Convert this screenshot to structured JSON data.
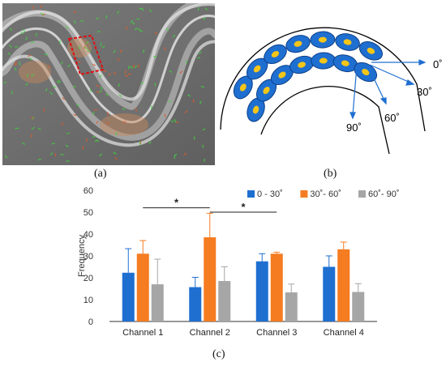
{
  "panels": {
    "a": {
      "label": "(a)"
    },
    "b": {
      "label": "(b)",
      "angle_labels": [
        "0˚",
        "30˚",
        "60˚",
        "90˚"
      ]
    },
    "c": {
      "label": "(c)"
    }
  },
  "chart_data": {
    "type": "bar",
    "title": "",
    "xlabel": "",
    "ylabel": "Frequency",
    "ylim": [
      0,
      60
    ],
    "yticks": [
      0,
      10,
      20,
      30,
      40,
      50,
      60
    ],
    "grid": false,
    "legend_position": "top-right",
    "categories": [
      "Channel 1",
      "Channel 2",
      "Channel 3",
      "Channel 4"
    ],
    "series": [
      {
        "name": "0 - 30˚",
        "color": "#1f6fd1",
        "values": [
          22.3,
          15.7,
          27.5,
          25.0
        ],
        "errors": [
          11.0,
          4.5,
          3.5,
          5.0
        ]
      },
      {
        "name": "30˚- 60˚",
        "color": "#f57c20",
        "values": [
          31.0,
          38.5,
          31.0,
          33.0
        ],
        "errors": [
          6.0,
          11.0,
          0.7,
          3.3
        ]
      },
      {
        "name": "60˚- 90˚",
        "color": "#a6a6a6",
        "values": [
          17.0,
          18.5,
          13.3,
          13.5
        ],
        "errors": [
          11.5,
          6.5,
          3.8,
          3.8
        ]
      }
    ],
    "annotations": [
      {
        "text": "*",
        "from_category": "Channel 1",
        "to_category": "Channel 2",
        "y": 52
      },
      {
        "text": "*",
        "from_category": "Channel 2",
        "to_category": "Channel 3",
        "y": 50
      }
    ]
  }
}
